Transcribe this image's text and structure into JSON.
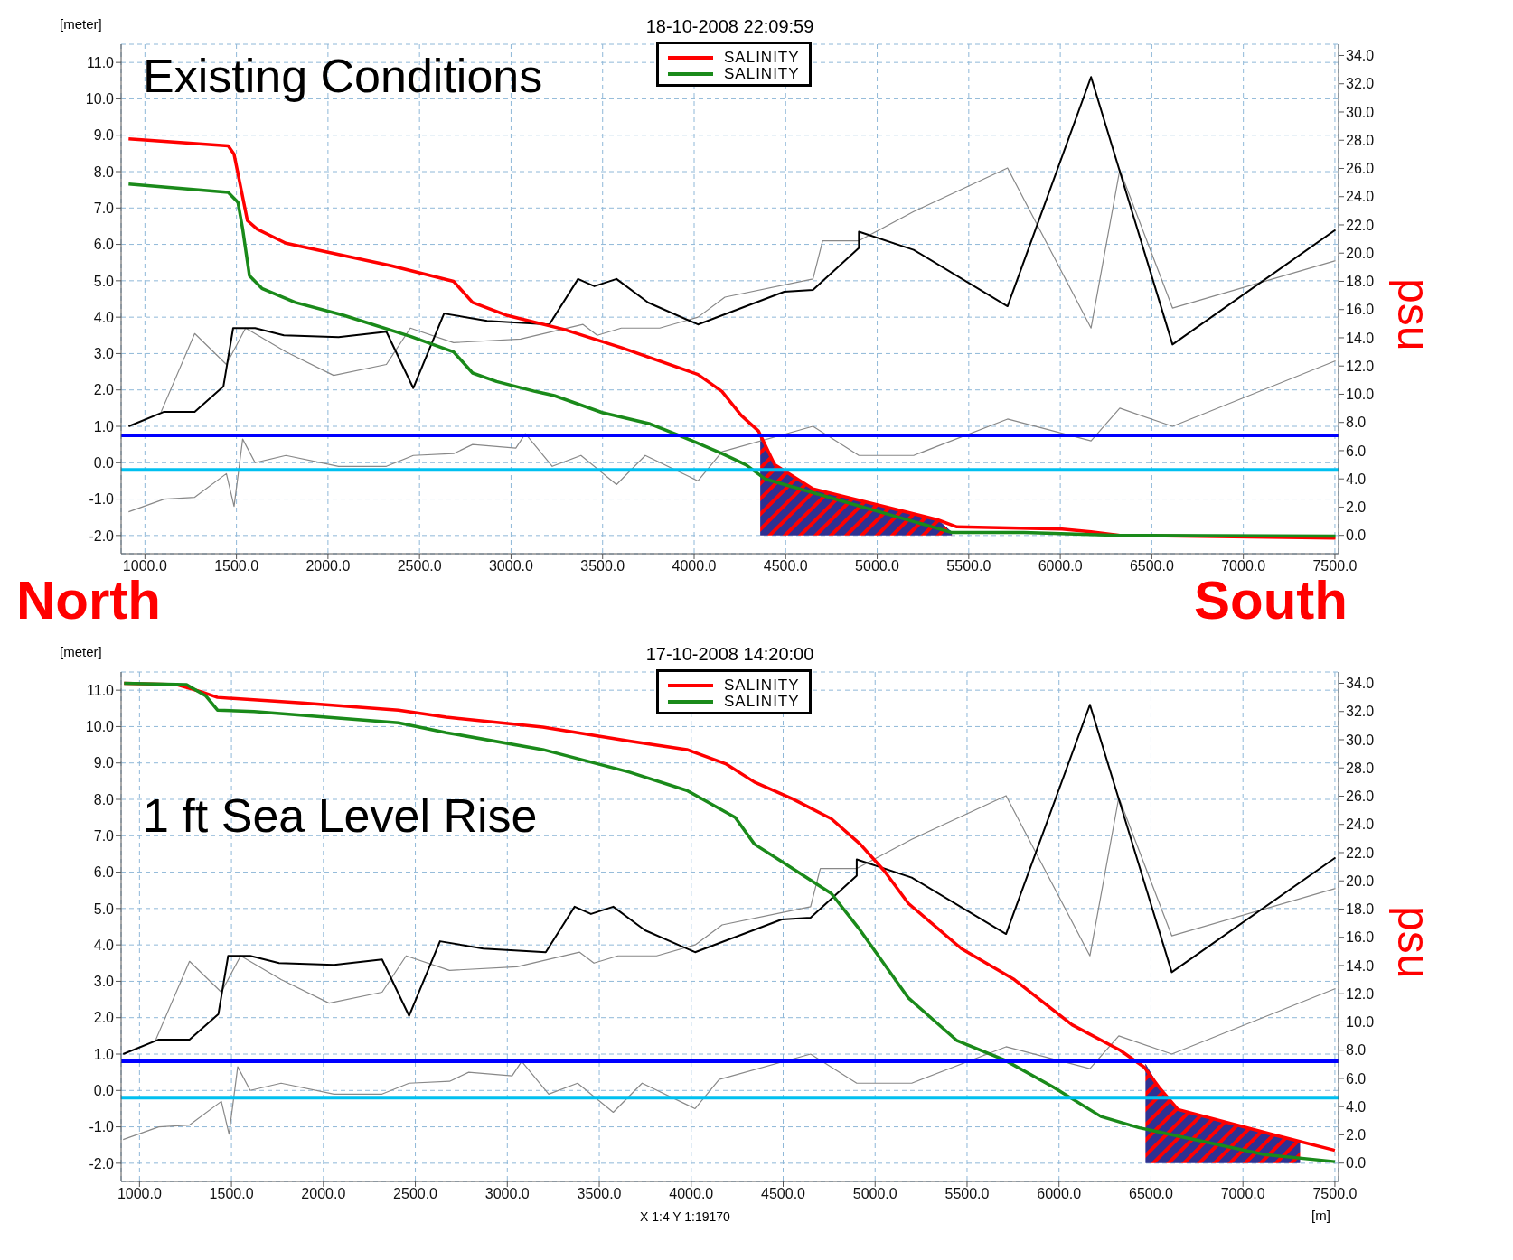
{
  "chart_data": [
    {
      "type": "line",
      "title": "18-10-2008 22:09:59",
      "ylabel": "[meter]",
      "y2label": "psu",
      "annotations": [
        "Existing Conditions",
        "North",
        "South"
      ],
      "xlim": [
        870,
        7520
      ],
      "xticks": [
        {
          "value": 1000,
          "label": "1000.0"
        },
        {
          "value": 1500,
          "label": "1500.0"
        },
        {
          "value": 2000,
          "label": "2000.0"
        },
        {
          "value": 2500,
          "label": "2500.0"
        },
        {
          "value": 3000,
          "label": "3000.0"
        },
        {
          "value": 3500,
          "label": "3500.0"
        },
        {
          "value": 4000,
          "label": "4000.0"
        },
        {
          "value": 4500,
          "label": "4500.0"
        },
        {
          "value": 5000,
          "label": "5000.0"
        },
        {
          "value": 5500,
          "label": "5500.0"
        },
        {
          "value": 6000,
          "label": "6000.0"
        },
        {
          "value": 6500,
          "label": "6500.0"
        },
        {
          "value": 7000,
          "label": "7000.0"
        },
        {
          "value": 7500,
          "label": "7500.0"
        }
      ],
      "ylim": [
        -2.5,
        11.5
      ],
      "yticks": [
        {
          "value": -2,
          "label": "-2.0"
        },
        {
          "value": -1,
          "label": "-1.0"
        },
        {
          "value": 0,
          "label": "0.0"
        },
        {
          "value": 1,
          "label": "1.0"
        },
        {
          "value": 2,
          "label": "2.0"
        },
        {
          "value": 3,
          "label": "3.0"
        },
        {
          "value": 4,
          "label": "4.0"
        },
        {
          "value": 5,
          "label": "5.0"
        },
        {
          "value": 6,
          "label": "6.0"
        },
        {
          "value": 7,
          "label": "7.0"
        },
        {
          "value": 8,
          "label": "8.0"
        },
        {
          "value": 9,
          "label": "9.0"
        },
        {
          "value": 10,
          "label": "10.0"
        },
        {
          "value": 11,
          "label": "11.0"
        }
      ],
      "y2lim": [
        -1.3,
        34.8
      ],
      "y2ticks": [
        {
          "value": 0,
          "label": "0.0"
        },
        {
          "value": 2,
          "label": "2.0"
        },
        {
          "value": 4,
          "label": "4.0"
        },
        {
          "value": 6,
          "label": "6.0"
        },
        {
          "value": 8,
          "label": "8.0"
        },
        {
          "value": 10,
          "label": "10.0"
        },
        {
          "value": 12,
          "label": "12.0"
        },
        {
          "value": 14,
          "label": "14.0"
        },
        {
          "value": 16,
          "label": "16.0"
        },
        {
          "value": 18,
          "label": "18.0"
        },
        {
          "value": 20,
          "label": "20.0"
        },
        {
          "value": 22,
          "label": "22.0"
        },
        {
          "value": 24,
          "label": "24.0"
        },
        {
          "value": 26,
          "label": "26.0"
        },
        {
          "value": 28,
          "label": "28.0"
        },
        {
          "value": 30,
          "label": "30.0"
        },
        {
          "value": 32,
          "label": "32.0"
        },
        {
          "value": 34,
          "label": "34.0"
        }
      ],
      "grid": true,
      "legend": "top",
      "ref_lines": [
        {
          "axis": "y",
          "value": 0.75,
          "color": "#0000ff"
        },
        {
          "axis": "y",
          "value": -0.2,
          "color": "#00c0f0"
        }
      ],
      "series": [
        {
          "type": "area",
          "axis": "y2",
          "color": "#2e3192",
          "x": [
            4361,
            4440,
            4649,
            5330,
            5408
          ],
          "values": [
            7.0,
            5.0,
            3.3,
            1.1,
            0.2
          ]
        },
        {
          "color": "#888888",
          "x": [
            1089,
            1272,
            1445,
            1550,
            1770,
            2031,
            2319,
            2450,
            2686,
            3052,
            3393,
            3471,
            3602,
            3812,
            4021,
            4168,
            4649,
            4702,
            4900,
            5199,
            5712,
            6168,
            6325,
            6613,
            7503
          ],
          "values": [
            1.4,
            3.55,
            2.7,
            3.7,
            3.05,
            2.4,
            2.7,
            3.7,
            3.3,
            3.4,
            3.8,
            3.5,
            3.7,
            3.7,
            4.0,
            4.55,
            5.05,
            6.1,
            6.1,
            6.9,
            8.1,
            3.7,
            8.05,
            4.25,
            5.55
          ]
        },
        {
          "color": "#888888",
          "x": [
            911,
            1105,
            1272,
            1445,
            1487,
            1534,
            1602,
            1770,
            2058,
            2319,
            2466,
            2686,
            2790,
            3026,
            3078,
            3225,
            3382,
            3576,
            3733,
            4021,
            4152,
            4649,
            4900,
            5199,
            5712,
            6168,
            6325,
            6613,
            7503
          ],
          "values": [
            -1.35,
            -1.0,
            -0.95,
            -0.3,
            -1.2,
            0.65,
            0.0,
            0.2,
            -0.1,
            -0.1,
            0.2,
            0.25,
            0.5,
            0.4,
            0.8,
            -0.1,
            0.2,
            -0.6,
            0.2,
            -0.5,
            0.3,
            1.0,
            0.2,
            0.2,
            1.2,
            0.6,
            1.5,
            1.0,
            2.8
          ]
        },
        {
          "color": "#000000",
          "x": [
            911,
            1105,
            1272,
            1429,
            1482,
            1602,
            1759,
            2058,
            2319,
            2466,
            2634,
            2869,
            3209,
            3366,
            3455,
            3576,
            3749,
            4021,
            4492,
            4649,
            4900,
            4900,
            5199,
            5712,
            6168,
            6613,
            7503
          ],
          "values": [
            1.0,
            1.4,
            1.4,
            2.1,
            3.7,
            3.7,
            3.5,
            3.45,
            3.6,
            2.05,
            4.1,
            3.9,
            3.8,
            5.05,
            4.85,
            5.05,
            4.4,
            3.8,
            4.7,
            4.75,
            5.9,
            6.35,
            5.85,
            4.3,
            10.6,
            3.25,
            6.4
          ]
        },
        {
          "name": "SALINITY",
          "axis": "y2",
          "color": "#ff0000",
          "x": [
            911,
            1455,
            1487,
            1560,
            1613,
            1770,
            2346,
            2686,
            2790,
            2974,
            3288,
            3602,
            4021,
            4152,
            4257,
            4351,
            4440,
            4649,
            5330,
            5435,
            6010,
            6168,
            6325,
            7503
          ],
          "values": [
            28.1,
            27.6,
            27.0,
            22.3,
            21.7,
            20.7,
            19.1,
            18.0,
            16.5,
            15.6,
            14.6,
            13.3,
            11.4,
            10.2,
            8.5,
            7.4,
            5.0,
            3.3,
            1.1,
            0.6,
            0.45,
            0.25,
            0.0,
            -0.2
          ]
        },
        {
          "name": "SALINITY",
          "axis": "y2",
          "color": "#1a8a1a",
          "x": [
            911,
            1455,
            1508,
            1534,
            1571,
            1639,
            1822,
            2084,
            2450,
            2686,
            2790,
            2921,
            3131,
            3236,
            3497,
            3759,
            3916,
            4152,
            4283,
            4387,
            5408,
            5801,
            6325,
            7503
          ],
          "values": [
            24.9,
            24.3,
            23.6,
            21.7,
            18.4,
            17.5,
            16.5,
            15.6,
            14.1,
            13.0,
            11.5,
            10.9,
            10.2,
            9.9,
            8.7,
            7.9,
            7.1,
            5.8,
            5.0,
            4.0,
            0.2,
            0.2,
            0.0,
            -0.05
          ]
        }
      ]
    },
    {
      "type": "line",
      "title": "17-10-2008 14:20:00",
      "ylabel": "[meter]",
      "y2label": "psu",
      "xlabel": "[m]",
      "annotations": [
        "1 ft Sea Level Rise",
        "X 1:4  Y 1:19170"
      ],
      "xlim": [
        900,
        7520
      ],
      "xticks": [
        {
          "value": 1000,
          "label": "1000.0"
        },
        {
          "value": 1500,
          "label": "1500.0"
        },
        {
          "value": 2000,
          "label": "2000.0"
        },
        {
          "value": 2500,
          "label": "2500.0"
        },
        {
          "value": 3000,
          "label": "3000.0"
        },
        {
          "value": 3500,
          "label": "3500.0"
        },
        {
          "value": 4000,
          "label": "4000.0"
        },
        {
          "value": 4500,
          "label": "4500.0"
        },
        {
          "value": 5000,
          "label": "5000.0"
        },
        {
          "value": 5500,
          "label": "5500.0"
        },
        {
          "value": 6000,
          "label": "6000.0"
        },
        {
          "value": 6500,
          "label": "6500.0"
        },
        {
          "value": 7000,
          "label": "7000.0"
        },
        {
          "value": 7500,
          "label": "7500.0"
        }
      ],
      "ylim": [
        -2.5,
        11.5
      ],
      "yticks": [
        {
          "value": -2,
          "label": "-2.0"
        },
        {
          "value": -1,
          "label": "-1.0"
        },
        {
          "value": 0,
          "label": "0.0"
        },
        {
          "value": 1,
          "label": "1.0"
        },
        {
          "value": 2,
          "label": "2.0"
        },
        {
          "value": 3,
          "label": "3.0"
        },
        {
          "value": 4,
          "label": "4.0"
        },
        {
          "value": 5,
          "label": "5.0"
        },
        {
          "value": 6,
          "label": "6.0"
        },
        {
          "value": 7,
          "label": "7.0"
        },
        {
          "value": 8,
          "label": "8.0"
        },
        {
          "value": 9,
          "label": "9.0"
        },
        {
          "value": 10,
          "label": "10.0"
        },
        {
          "value": 11,
          "label": "11.0"
        }
      ],
      "y2lim": [
        -1.3,
        34.8
      ],
      "y2ticks": [
        {
          "value": 0,
          "label": "0.0"
        },
        {
          "value": 2,
          "label": "2.0"
        },
        {
          "value": 4,
          "label": "4.0"
        },
        {
          "value": 6,
          "label": "6.0"
        },
        {
          "value": 8,
          "label": "8.0"
        },
        {
          "value": 10,
          "label": "10.0"
        },
        {
          "value": 12,
          "label": "12.0"
        },
        {
          "value": 14,
          "label": "14.0"
        },
        {
          "value": 16,
          "label": "16.0"
        },
        {
          "value": 18,
          "label": "18.0"
        },
        {
          "value": 20,
          "label": "20.0"
        },
        {
          "value": 22,
          "label": "22.0"
        },
        {
          "value": 24,
          "label": "24.0"
        },
        {
          "value": 26,
          "label": "26.0"
        },
        {
          "value": 28,
          "label": "28.0"
        },
        {
          "value": 30,
          "label": "30.0"
        },
        {
          "value": 32,
          "label": "32.0"
        },
        {
          "value": 34,
          "label": "34.0"
        }
      ],
      "grid": true,
      "legend": "top",
      "ref_lines": [
        {
          "axis": "y",
          "value": 0.8,
          "color": "#0000ff"
        },
        {
          "axis": "y",
          "value": -0.2,
          "color": "#00c0f0"
        }
      ],
      "series": [
        {
          "type": "area",
          "axis": "y2",
          "color": "#2e3192",
          "x": [
            6470,
            6542,
            6647,
            7170,
            7311
          ],
          "values": [
            7.0,
            5.4,
            3.8,
            2.0,
            1.5
          ]
        },
        {
          "color": "#888888",
          "x": [
            1089,
            1272,
            1445,
            1550,
            1770,
            2031,
            2319,
            2450,
            2686,
            3052,
            3393,
            3471,
            3602,
            3812,
            4021,
            4168,
            4649,
            4702,
            4900,
            5199,
            5712,
            6168,
            6325,
            6613,
            7503
          ],
          "values": [
            1.4,
            3.55,
            2.7,
            3.7,
            3.05,
            2.4,
            2.7,
            3.7,
            3.3,
            3.4,
            3.8,
            3.5,
            3.7,
            3.7,
            4.0,
            4.55,
            5.05,
            6.1,
            6.1,
            6.9,
            8.1,
            3.7,
            8.05,
            4.25,
            5.55
          ]
        },
        {
          "color": "#888888",
          "x": [
            911,
            1105,
            1272,
            1445,
            1487,
            1534,
            1602,
            1770,
            2058,
            2319,
            2466,
            2686,
            2790,
            3026,
            3078,
            3225,
            3382,
            3576,
            3733,
            4021,
            4152,
            4649,
            4900,
            5199,
            5712,
            6168,
            6325,
            6613,
            7503
          ],
          "values": [
            -1.35,
            -1.0,
            -0.95,
            -0.3,
            -1.2,
            0.65,
            0.0,
            0.2,
            -0.1,
            -0.1,
            0.2,
            0.25,
            0.5,
            0.4,
            0.8,
            -0.1,
            0.2,
            -0.6,
            0.2,
            -0.5,
            0.3,
            1.0,
            0.2,
            0.2,
            1.2,
            0.6,
            1.5,
            1.0,
            2.8
          ]
        },
        {
          "color": "#000000",
          "x": [
            911,
            1105,
            1272,
            1429,
            1482,
            1602,
            1759,
            2058,
            2319,
            2466,
            2634,
            2869,
            3209,
            3366,
            3455,
            3576,
            3749,
            4021,
            4492,
            4649,
            4900,
            4900,
            5199,
            5712,
            6168,
            6613,
            7503
          ],
          "values": [
            1.0,
            1.4,
            1.4,
            2.1,
            3.7,
            3.7,
            3.5,
            3.45,
            3.6,
            2.05,
            4.1,
            3.9,
            3.8,
            5.05,
            4.85,
            5.05,
            4.4,
            3.8,
            4.7,
            4.75,
            5.9,
            6.35,
            5.85,
            4.3,
            10.6,
            3.25,
            6.4
          ]
        },
        {
          "name": "SALINITY",
          "axis": "y2",
          "color": "#ff0000",
          "x": [
            916,
            1204,
            1335,
            1424,
            1884,
            2408,
            2669,
            3193,
            3664,
            3977,
            4187,
            4344,
            4553,
            4762,
            4919,
            5050,
            5181,
            5469,
            5757,
            6071,
            6332,
            6463,
            6542,
            6647,
            7170,
            7500
          ],
          "values": [
            34.0,
            33.9,
            33.4,
            33.0,
            32.6,
            32.1,
            31.6,
            30.9,
            29.9,
            29.3,
            28.3,
            27.0,
            25.8,
            24.4,
            22.6,
            20.7,
            18.4,
            15.2,
            13.0,
            9.8,
            8.0,
            6.8,
            5.4,
            3.8,
            2.0,
            0.9
          ]
        },
        {
          "name": "SALINITY",
          "axis": "y2",
          "color": "#1a8a1a",
          "x": [
            916,
            1256,
            1361,
            1424,
            1623,
            2408,
            2669,
            3193,
            3664,
            3977,
            4239,
            4344,
            4501,
            4762,
            4919,
            5181,
            5443,
            5704,
            5966,
            6228,
            6437,
            7117,
            7500
          ],
          "values": [
            34.0,
            33.9,
            33.1,
            32.1,
            32.0,
            31.2,
            30.5,
            29.3,
            27.7,
            26.4,
            24.5,
            22.6,
            21.3,
            19.1,
            16.5,
            11.7,
            8.7,
            7.3,
            5.4,
            3.3,
            2.5,
            0.6,
            0.1
          ]
        }
      ]
    }
  ]
}
